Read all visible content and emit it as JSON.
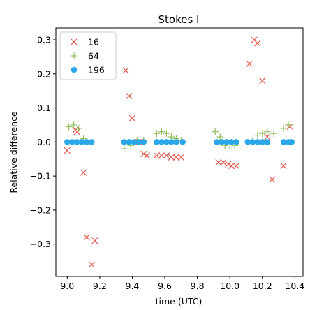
{
  "chart_data": {
    "type": "scatter",
    "title": "Stokes I",
    "xlabel": "time (UTC)",
    "ylabel": "Relative difference",
    "xlim": [
      8.93,
      10.45
    ],
    "ylim": [
      -0.395,
      0.335
    ],
    "xticks": [
      9.0,
      9.2,
      9.4,
      9.6,
      9.8,
      10.0,
      10.2,
      10.4
    ],
    "xtick_labels": [
      "9.0",
      "9.2",
      "9.4",
      "9.6",
      "9.8",
      "10.0",
      "10.2",
      "10.4"
    ],
    "yticks": [
      -0.3,
      -0.2,
      -0.1,
      0.0,
      0.1,
      0.2,
      0.3
    ],
    "ytick_labels": [
      "−0.3",
      "−0.2",
      "−0.1",
      "0.0",
      "0.1",
      "0.2",
      "0.3"
    ],
    "grid": false,
    "legend_position": "top-left",
    "series": [
      {
        "name": "16",
        "marker": "x",
        "color": "#e05a4e",
        "x": [
          9.0,
          9.05,
          9.06,
          9.1,
          9.12,
          9.15,
          9.17,
          9.36,
          9.38,
          9.4,
          9.44,
          9.47,
          9.49,
          9.55,
          9.58,
          9.61,
          9.64,
          9.67,
          9.7,
          9.93,
          9.96,
          9.99,
          10.01,
          10.04,
          10.12,
          10.15,
          10.17,
          10.2,
          10.23,
          10.26,
          10.33,
          10.37
        ],
        "y": [
          -0.025,
          0.035,
          0.03,
          -0.09,
          -0.28,
          -0.36,
          -0.29,
          0.21,
          0.135,
          0.07,
          0.0,
          -0.035,
          -0.04,
          -0.04,
          -0.04,
          -0.04,
          -0.045,
          -0.045,
          -0.045,
          -0.06,
          -0.06,
          -0.065,
          -0.07,
          -0.07,
          0.23,
          0.3,
          0.29,
          0.18,
          0.015,
          -0.11,
          -0.07,
          0.045
        ]
      },
      {
        "name": "64",
        "marker": "+",
        "color": "#8fbf5a",
        "x": [
          9.01,
          9.04,
          9.07,
          9.1,
          9.35,
          9.39,
          9.43,
          9.47,
          9.55,
          9.58,
          9.61,
          9.64,
          9.67,
          9.7,
          9.91,
          9.94,
          9.97,
          10.0,
          10.03,
          10.14,
          10.17,
          10.2,
          10.23,
          10.27,
          10.33,
          10.36
        ],
        "y": [
          0.045,
          0.05,
          0.04,
          0.01,
          -0.02,
          -0.01,
          0.005,
          0.005,
          0.025,
          0.03,
          0.025,
          0.015,
          0.01,
          0.005,
          0.03,
          0.015,
          -0.01,
          -0.015,
          -0.01,
          0.005,
          0.02,
          0.025,
          0.03,
          0.025,
          0.04,
          0.05
        ]
      },
      {
        "name": "196",
        "marker": "circle",
        "color": "#2aa7e8",
        "x": [
          9.0,
          9.03,
          9.06,
          9.09,
          9.12,
          9.15,
          9.35,
          9.38,
          9.41,
          9.44,
          9.47,
          9.55,
          9.58,
          9.61,
          9.64,
          9.67,
          9.71,
          9.92,
          9.95,
          9.98,
          10.01,
          10.04,
          10.11,
          10.14,
          10.17,
          10.2,
          10.23,
          10.33,
          10.36,
          10.38
        ],
        "y": [
          0,
          0,
          0,
          0,
          0,
          0,
          0,
          0,
          0,
          0,
          0,
          0,
          0,
          0,
          0,
          0,
          0,
          0,
          0,
          0,
          0,
          0,
          0,
          0,
          0,
          0,
          0,
          0,
          0,
          0
        ]
      }
    ]
  }
}
